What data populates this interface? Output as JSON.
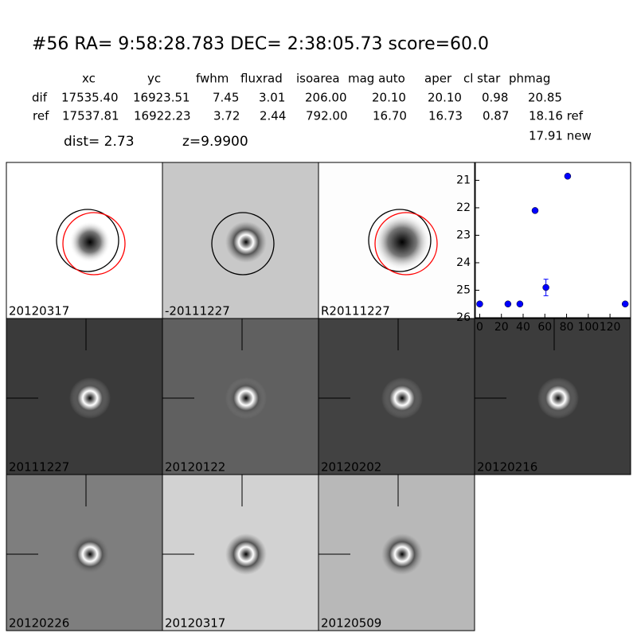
{
  "header": {
    "title": "#56   RA= 9:58:28.783 DEC= 2:38:05.73      score=60.0"
  },
  "table": {
    "columns": [
      "xc",
      "yc",
      "fwhm",
      "fluxrad",
      "isoarea",
      "mag auto",
      "aper",
      "cl star",
      "phmag"
    ],
    "rows": [
      [
        "dif",
        "17535.40",
        "16923.51",
        "7.45",
        "3.01",
        "206.00",
        "20.10",
        "20.10",
        "0.98",
        "20.85"
      ],
      [
        "ref",
        "17537.81",
        "16922.23",
        "3.72",
        "2.44",
        "792.00",
        "16.70",
        "16.73",
        "0.87",
        "18.16 ref"
      ]
    ],
    "extra": "17.91 new"
  },
  "dist": "dist=  2.73",
  "z": "z=9.9900",
  "stamps": [
    {
      "label": "20120317",
      "color": "#000000"
    },
    {
      "label": "-20111227",
      "color": "#000000"
    },
    {
      "label": "R20111227",
      "color": "#000000"
    },
    {
      "label": "20111227",
      "color": "#000000"
    },
    {
      "label": "20120122",
      "color": "#000000"
    },
    {
      "label": "20120202",
      "color": "#000000"
    },
    {
      "label": "20120216",
      "color": "#000000"
    },
    {
      "label": "20120226",
      "color": "#000000"
    },
    {
      "label": "20120317",
      "color": "#ff0000"
    },
    {
      "label": "20120509",
      "color": "#000000"
    }
  ],
  "chart_data": {
    "type": "scatter",
    "x": [
      0,
      26,
      37,
      51,
      61,
      81,
      134
    ],
    "series": [
      {
        "color": "#0000ff",
        "values": [
          25.5,
          25.5,
          25.5,
          22.1,
          24.9,
          20.85,
          25.5
        ],
        "errors": [
          null,
          null,
          null,
          null,
          0.3,
          null,
          null
        ]
      }
    ],
    "xlim": [
      -4,
      139
    ],
    "xticks": [
      0,
      20,
      40,
      60,
      80,
      100,
      120
    ],
    "ylim": [
      26,
      20.35
    ],
    "yticks": [
      21,
      22,
      23,
      24,
      25,
      26
    ]
  }
}
